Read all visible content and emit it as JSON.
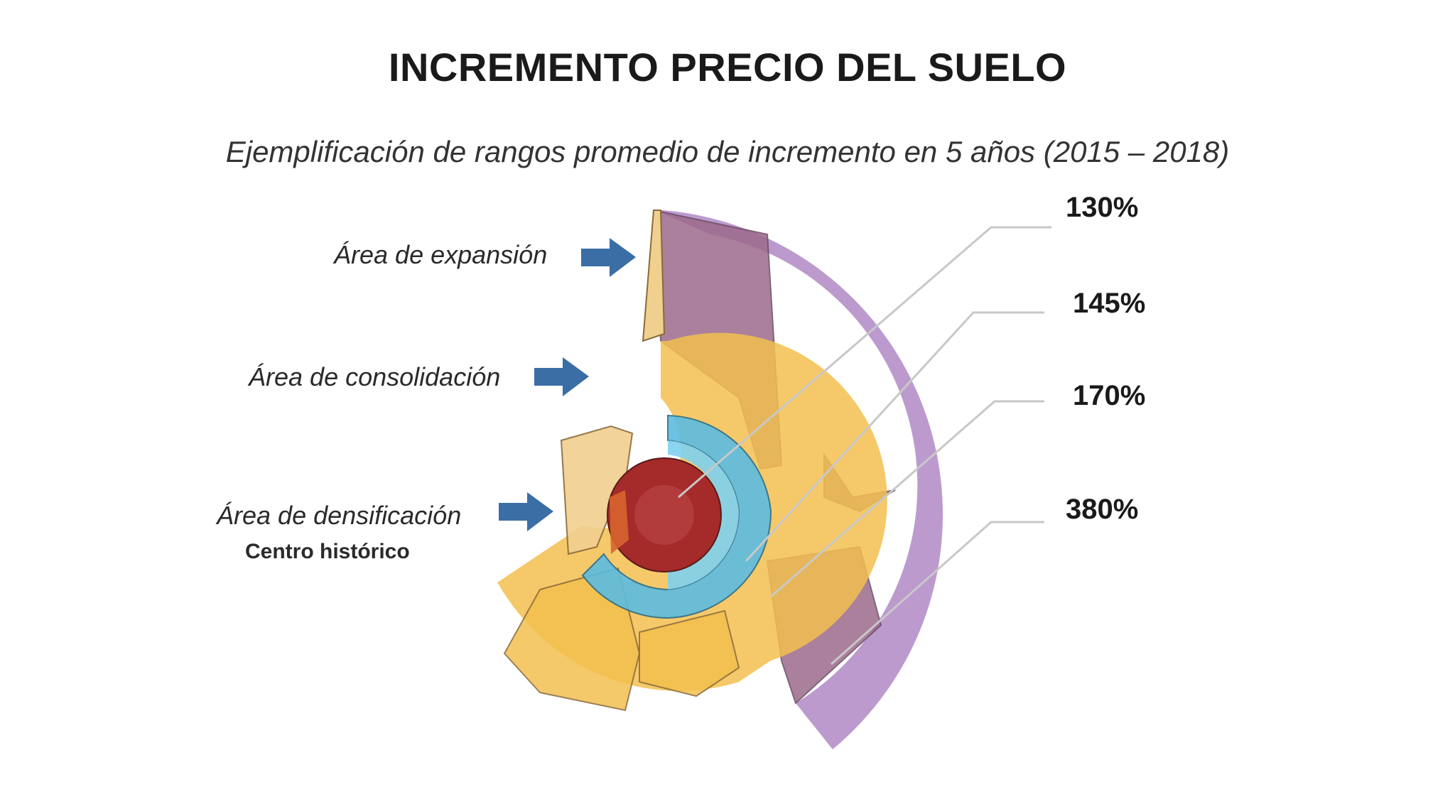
{
  "title": "INCREMENTO PRECIO DEL SUELO",
  "subtitle": "Ejemplificación de rangos promedio de incremento en 5 años (2015 – 2018)",
  "areas": [
    {
      "label": "Área de expansión"
    },
    {
      "label": "Área de consolidación"
    },
    {
      "label": "Área de densificación",
      "sublabel": "Centro histórico"
    }
  ],
  "increments": [
    "130%",
    "145%",
    "170%",
    "380%"
  ],
  "colors": {
    "arrow": "#3a6ea5",
    "centro": "#a52a2a",
    "densificacion": "#5bbce0",
    "consolidacion": "#f3c04f",
    "expansion": "#b58fc9",
    "expansion_dark": "#9c6a8c",
    "leader": "#c8c8c8"
  }
}
